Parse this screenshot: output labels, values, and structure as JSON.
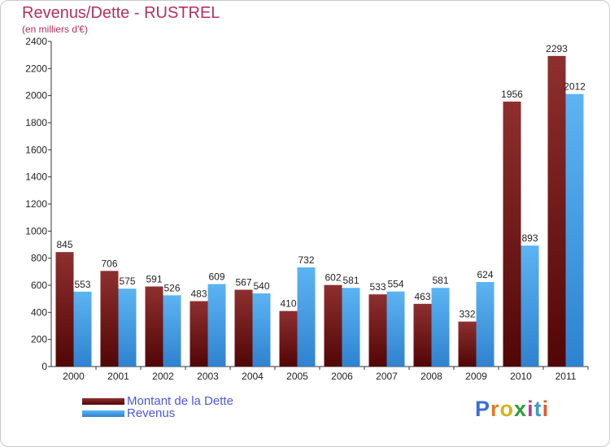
{
  "title": "Revenus/Dette - RUSTREL",
  "unit_label": "(en milliers d'€)",
  "logo": {
    "text": "Proxiti",
    "letter_colors": [
      "#3a6fd0",
      "#e07a1f",
      "#d4b31a",
      "#2a9e3a",
      "#c03a8a",
      "#3a9ec0",
      "#e05a2a"
    ]
  },
  "chart_data": {
    "type": "bar",
    "categories": [
      "2000",
      "2001",
      "2002",
      "2003",
      "2004",
      "2005",
      "2006",
      "2007",
      "2008",
      "2009",
      "2010",
      "2011"
    ],
    "series": [
      {
        "name": "Montant de la Dette",
        "values": [
          845,
          706,
          591,
          483,
          567,
          410,
          602,
          533,
          463,
          332,
          1956,
          2293
        ],
        "color": "#7a1b1b"
      },
      {
        "name": "Revenus",
        "values": [
          553,
          575,
          526,
          609,
          540,
          732,
          581,
          554,
          581,
          624,
          893,
          2012
        ],
        "color": "#3d9ae6"
      }
    ],
    "ylim": [
      0,
      2400
    ],
    "yticks": [
      0,
      200,
      400,
      600,
      800,
      1000,
      1200,
      1400,
      1600,
      1800,
      2000,
      2200,
      2400
    ],
    "grid": false,
    "legend_position": "bottom-left"
  }
}
